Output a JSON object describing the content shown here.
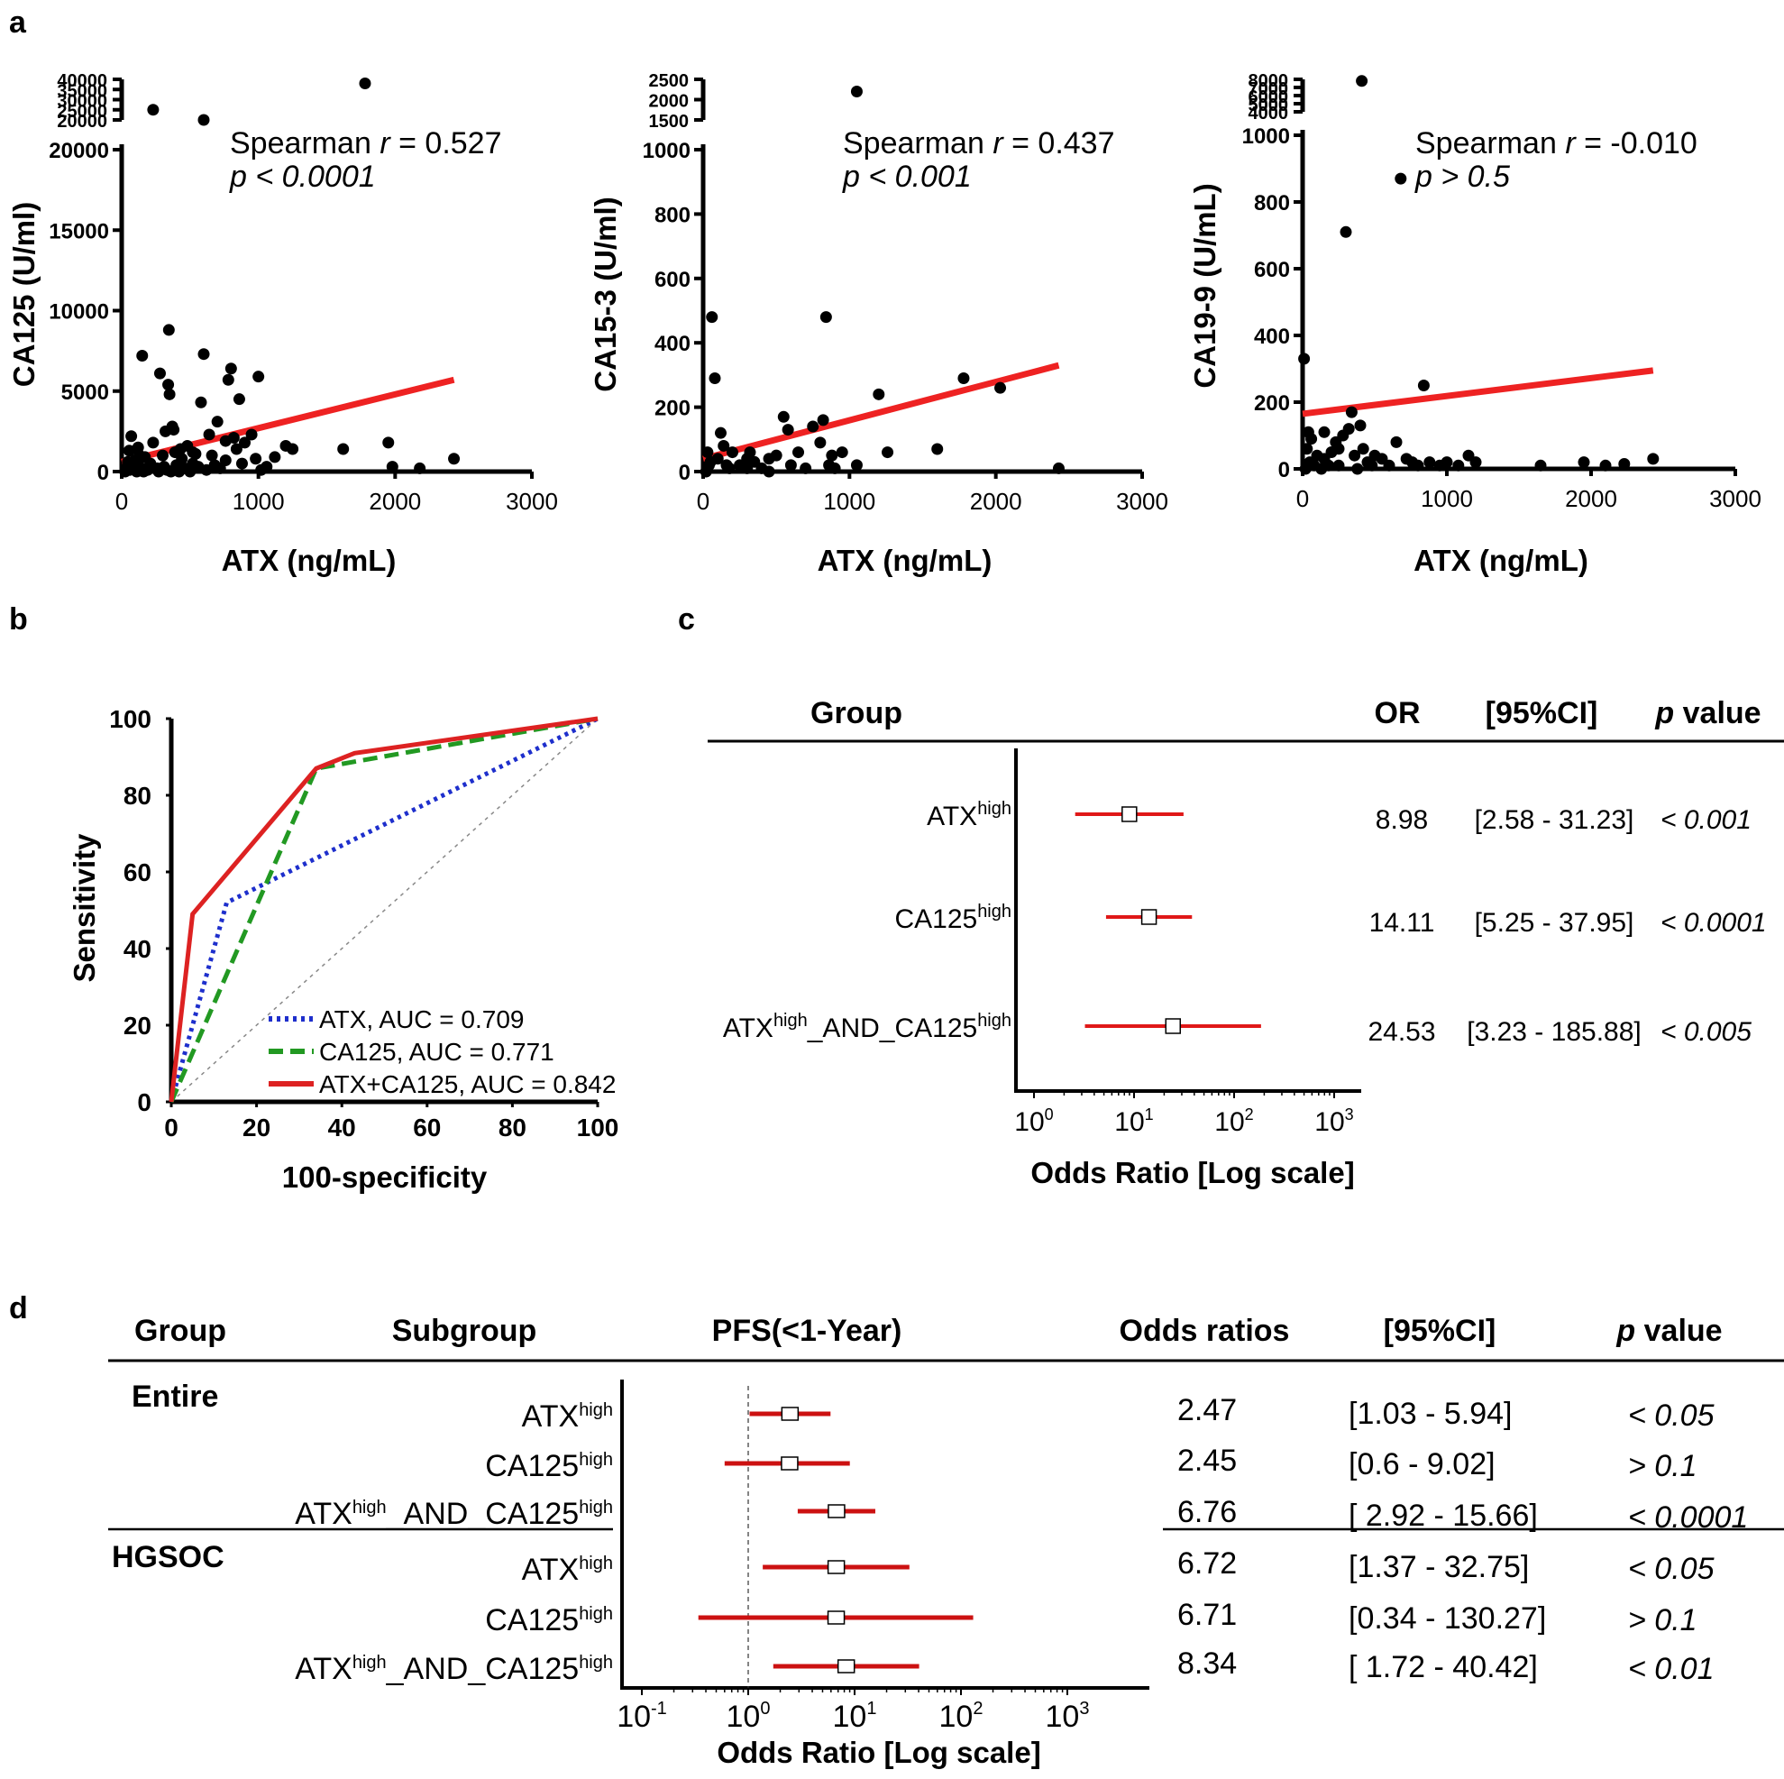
{
  "panels": {
    "a": "a",
    "b": "b",
    "c": "c",
    "d": "d"
  },
  "chart_data": [
    {
      "id": "a1",
      "type": "scatter",
      "xlabel": "ATX (ng/mL)",
      "ylabel": "CA125 (U/ml)",
      "xlim": [
        0,
        3000
      ],
      "ylim": [
        0,
        20000
      ],
      "xticks": [
        "0",
        "1000",
        "2000",
        "3000"
      ],
      "yticks": [
        "0",
        "5000",
        "10000",
        "15000",
        "20000"
      ],
      "break_ticks": [
        "40000",
        "35000",
        "30000",
        "25000",
        "20000"
      ],
      "annotation": {
        "prefix": "Spearman ",
        "r": "r",
        "eq": " = 0.527",
        "p": "p < 0.0001"
      },
      "fit": {
        "x": [
          0,
          2430
        ],
        "y": [
          600,
          5700
        ]
      },
      "points": [
        [
          25,
          0
        ],
        [
          35,
          200
        ],
        [
          45,
          600
        ],
        [
          55,
          1300
        ],
        [
          60,
          100
        ],
        [
          70,
          2200
        ],
        [
          80,
          300
        ],
        [
          95,
          700
        ],
        [
          110,
          0
        ],
        [
          120,
          1500
        ],
        [
          130,
          300
        ],
        [
          150,
          7200
        ],
        [
          160,
          0
        ],
        [
          170,
          900
        ],
        [
          190,
          100
        ],
        [
          210,
          500
        ],
        [
          230,
          1800
        ],
        [
          260,
          200
        ],
        [
          270,
          0
        ],
        [
          280,
          6100
        ],
        [
          300,
          1000
        ],
        [
          310,
          300
        ],
        [
          320,
          2500
        ],
        [
          330,
          100
        ],
        [
          340,
          5400
        ],
        [
          345,
          8800
        ],
        [
          350,
          4800
        ],
        [
          360,
          0
        ],
        [
          370,
          2800
        ],
        [
          380,
          2600
        ],
        [
          390,
          1200
        ],
        [
          400,
          400
        ],
        [
          420,
          0
        ],
        [
          440,
          800
        ],
        [
          460,
          200
        ],
        [
          480,
          1600
        ],
        [
          500,
          0
        ],
        [
          520,
          500
        ],
        [
          540,
          1100
        ],
        [
          560,
          300
        ],
        [
          580,
          4300
        ],
        [
          600,
          7300
        ],
        [
          620,
          100
        ],
        [
          640,
          2300
        ],
        [
          660,
          1000
        ],
        [
          680,
          400
        ],
        [
          700,
          3100
        ],
        [
          720,
          200
        ],
        [
          760,
          1900
        ],
        [
          780,
          5700
        ],
        [
          800,
          6400
        ],
        [
          820,
          2100
        ],
        [
          840,
          1400
        ],
        [
          860,
          4500
        ],
        [
          880,
          500
        ],
        [
          900,
          1800
        ],
        [
          950,
          2300
        ],
        [
          980,
          800
        ],
        [
          1000,
          5900
        ],
        [
          1020,
          100
        ],
        [
          1060,
          300
        ],
        [
          1120,
          900
        ],
        [
          1200,
          1600
        ],
        [
          1250,
          1400
        ],
        [
          1620,
          1400
        ],
        [
          1950,
          1800
        ],
        [
          1980,
          300
        ],
        [
          2180,
          200
        ],
        [
          2430,
          800
        ],
        [
          200,
          300
        ],
        [
          430,
          1400
        ],
        [
          760,
          700
        ],
        [
          130,
          1000
        ],
        [
          520,
          1200
        ]
      ],
      "break_points": [
        [
          1780,
          38000
        ],
        [
          230,
          25000
        ],
        [
          600,
          20000
        ]
      ]
    },
    {
      "id": "a2",
      "type": "scatter",
      "xlabel": "ATX (ng/mL)",
      "ylabel": "CA15-3 (U/ml)",
      "xlim": [
        0,
        3000
      ],
      "ylim": [
        0,
        1000
      ],
      "xticks": [
        "0",
        "1000",
        "2000",
        "3000"
      ],
      "yticks": [
        "0",
        "200",
        "400",
        "600",
        "800",
        "1000"
      ],
      "break_ticks": [
        "2500",
        "2000",
        "1500"
      ],
      "annotation": {
        "prefix": "Spearman ",
        "r": "r",
        "eq": " = 0.437",
        "p": "p < 0.001"
      },
      "fit": {
        "x": [
          0,
          2430
        ],
        "y": [
          40,
          330
        ]
      },
      "points": [
        [
          20,
          0
        ],
        [
          30,
          60
        ],
        [
          40,
          20
        ],
        [
          50,
          30
        ],
        [
          60,
          480
        ],
        [
          80,
          290
        ],
        [
          100,
          40
        ],
        [
          120,
          120
        ],
        [
          140,
          80
        ],
        [
          160,
          20
        ],
        [
          180,
          10
        ],
        [
          200,
          60
        ],
        [
          250,
          20
        ],
        [
          300,
          10
        ],
        [
          320,
          60
        ],
        [
          350,
          30
        ],
        [
          400,
          10
        ],
        [
          450,
          0
        ],
        [
          500,
          50
        ],
        [
          550,
          170
        ],
        [
          580,
          130
        ],
        [
          600,
          20
        ],
        [
          650,
          60
        ],
        [
          700,
          10
        ],
        [
          750,
          140
        ],
        [
          800,
          90
        ],
        [
          820,
          160
        ],
        [
          840,
          480
        ],
        [
          860,
          20
        ],
        [
          880,
          50
        ],
        [
          900,
          10
        ],
        [
          950,
          60
        ],
        [
          1050,
          20
        ],
        [
          1200,
          240
        ],
        [
          1260,
          60
        ],
        [
          1600,
          70
        ],
        [
          1780,
          290
        ],
        [
          2030,
          260
        ],
        [
          2430,
          10
        ],
        [
          300,
          40
        ],
        [
          450,
          40
        ]
      ],
      "break_points": [
        [
          1050,
          2200
        ]
      ]
    },
    {
      "id": "a3",
      "type": "scatter",
      "xlabel": "ATX (ng/mL)",
      "ylabel": "CA19-9 (U/mL)",
      "xlim": [
        0,
        3000
      ],
      "ylim": [
        0,
        1000
      ],
      "xticks": [
        "0",
        "1000",
        "2000",
        "3000"
      ],
      "yticks": [
        "0",
        "200",
        "400",
        "600",
        "800",
        "1000"
      ],
      "break_ticks": [
        "8000",
        "7000",
        "6000",
        "5000",
        "4000"
      ],
      "annotation": {
        "prefix": "Spearman ",
        "r": "r",
        "eq": " = -0.010",
        "p": "p > 0.5"
      },
      "fit": {
        "x": [
          0,
          2430
        ],
        "y": [
          165,
          295
        ]
      },
      "points": [
        [
          10,
          330
        ],
        [
          20,
          0
        ],
        [
          30,
          60
        ],
        [
          40,
          110
        ],
        [
          50,
          20
        ],
        [
          60,
          90
        ],
        [
          80,
          10
        ],
        [
          100,
          40
        ],
        [
          130,
          0
        ],
        [
          150,
          30
        ],
        [
          180,
          10
        ],
        [
          200,
          50
        ],
        [
          230,
          80
        ],
        [
          250,
          10
        ],
        [
          280,
          100
        ],
        [
          300,
          710
        ],
        [
          320,
          120
        ],
        [
          340,
          170
        ],
        [
          360,
          40
        ],
        [
          380,
          0
        ],
        [
          400,
          130
        ],
        [
          420,
          60
        ],
        [
          450,
          20
        ],
        [
          480,
          10
        ],
        [
          500,
          40
        ],
        [
          550,
          30
        ],
        [
          600,
          10
        ],
        [
          650,
          80
        ],
        [
          680,
          870
        ],
        [
          720,
          30
        ],
        [
          760,
          20
        ],
        [
          800,
          10
        ],
        [
          840,
          250
        ],
        [
          880,
          20
        ],
        [
          950,
          10
        ],
        [
          1000,
          20
        ],
        [
          1080,
          10
        ],
        [
          1150,
          40
        ],
        [
          1200,
          20
        ],
        [
          1650,
          10
        ],
        [
          1950,
          20
        ],
        [
          2100,
          10
        ],
        [
          2230,
          15
        ],
        [
          2430,
          30
        ],
        [
          150,
          110
        ],
        [
          250,
          60
        ]
      ],
      "break_points": [
        [
          410,
          7800
        ]
      ]
    },
    {
      "id": "b",
      "type": "line",
      "xlabel": "100-specificity",
      "ylabel": "Sensitivity",
      "xlim": [
        0,
        100
      ],
      "ylim": [
        0,
        100
      ],
      "xticks": [
        "0",
        "20",
        "40",
        "60",
        "80",
        "100"
      ],
      "yticks": [
        "0",
        "20",
        "40",
        "60",
        "80",
        "100"
      ],
      "series": [
        {
          "name": "ATX, AUC = 0.709",
          "color": "#1e2fcc",
          "dash": "dotted",
          "x": [
            0,
            13,
            100
          ],
          "y": [
            0,
            52,
            100
          ]
        },
        {
          "name": "CA125, AUC = 0.771",
          "color": "#229922",
          "dash": "dashed",
          "x": [
            0,
            34,
            100
          ],
          "y": [
            0,
            87,
            100
          ]
        },
        {
          "name": "ATX+CA125, AUC = 0.842",
          "color": "#dd2222",
          "dash": "solid",
          "x": [
            0,
            5,
            34,
            43,
            100
          ],
          "y": [
            0,
            49,
            87,
            91,
            100
          ]
        },
        {
          "name": "reference",
          "color": "#888888",
          "dash": "dotted",
          "x": [
            0,
            100
          ],
          "y": [
            0,
            100
          ]
        }
      ]
    },
    {
      "id": "c",
      "type": "forest",
      "headers": {
        "group": "Group",
        "or": "OR",
        "ci": "[95%CI]",
        "p_it": "p",
        "p_rest": " value"
      },
      "xlabel": "Odds Ratio [Log scale]",
      "xticks": [
        "0",
        "1",
        "2",
        "3"
      ],
      "rows": [
        {
          "label_a": "ATX",
          "sup_a": "high",
          "or": 8.98,
          "lo": 2.58,
          "hi": 31.23,
          "or_text": "8.98",
          "ci_text": "[2.58 - 31.23]",
          "p_text": "< 0.001"
        },
        {
          "label_a": "CA125",
          "sup_a": "high",
          "or": 14.11,
          "lo": 5.25,
          "hi": 37.95,
          "or_text": "14.11",
          "ci_text": "[5.25 - 37.95]",
          "p_text": "< 0.0001"
        },
        {
          "label_a": "ATX",
          "sup_a": "high",
          "mid": "_AND_CA125",
          "sup_b": "high",
          "or": 24.53,
          "lo": 3.23,
          "hi": 185.88,
          "or_text": "24.53",
          "ci_text": "[3.23 - 185.88]",
          "p_text": "< 0.005"
        }
      ]
    },
    {
      "id": "d",
      "type": "forest",
      "headers": {
        "group": "Group",
        "subgroup": "Subgroup",
        "pfs": "PFS(<1-Year)",
        "or": "Odds ratios",
        "ci": "[95%CI]",
        "p_it": "p",
        "p_rest": " value"
      },
      "xlabel": "Odds Ratio [Log scale]",
      "xticks": [
        "-1",
        "0",
        "1",
        "2",
        "3"
      ],
      "groups": [
        "Entire",
        "HGSOC"
      ],
      "rows": [
        {
          "group": "Entire",
          "label_a": "ATX",
          "sup_a": "high",
          "or": 2.47,
          "lo": 1.03,
          "hi": 5.94,
          "or_text": "2.47",
          "ci_text": "[1.03 - 5.94]",
          "p_text": "< 0.05"
        },
        {
          "group": "Entire",
          "label_a": "CA125",
          "sup_a": "high",
          "or": 2.45,
          "lo": 0.6,
          "hi": 9.02,
          "or_text": "2.45",
          "ci_text": "[0.6 - 9.02]",
          "p_text": "> 0.1"
        },
        {
          "group": "Entire",
          "label_a": "ATX",
          "sup_a": "high",
          "mid": "_AND_CA125",
          "sup_b": "high",
          "or": 6.76,
          "lo": 2.92,
          "hi": 15.66,
          "or_text": "6.76",
          "ci_text": "[ 2.92 - 15.66]",
          "p_text": "< 0.0001"
        },
        {
          "group": "HGSOC",
          "label_a": "ATX",
          "sup_a": "high",
          "or": 6.72,
          "lo": 1.37,
          "hi": 32.75,
          "or_text": "6.72",
          "ci_text": "[1.37 - 32.75]",
          "p_text": "< 0.05"
        },
        {
          "group": "HGSOC",
          "label_a": "CA125",
          "sup_a": "high",
          "or": 6.71,
          "lo": 0.34,
          "hi": 130.27,
          "or_text": "6.71",
          "ci_text": "[0.34 - 130.27]",
          "p_text": "> 0.1"
        },
        {
          "group": "HGSOC",
          "label_a": "ATX",
          "sup_a": "high",
          "mid": "_AND_CA125",
          "sup_b": "high",
          "or": 8.34,
          "lo": 1.72,
          "hi": 40.42,
          "or_text": "8.34",
          "ci_text": "[ 1.72 - 40.42]",
          "p_text": "< 0.01"
        }
      ]
    }
  ]
}
